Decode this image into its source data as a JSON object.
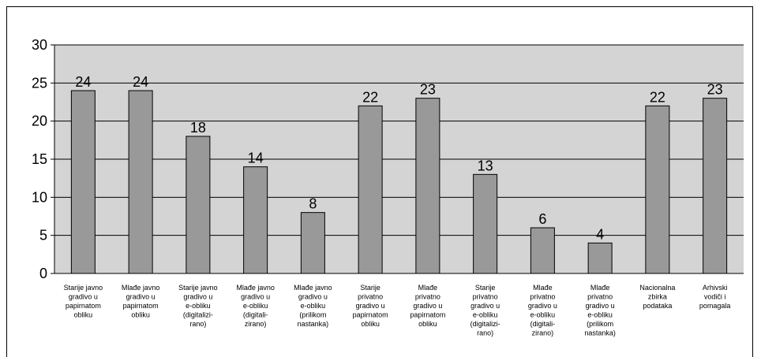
{
  "chart_data": {
    "type": "bar",
    "categories": [
      "Starije javno gradivo u papirnatom obliku",
      "Mlađe javno gradivo u papirnatom obliku",
      "Starije javno gradivo u e-obliku (digitalizi- rano)",
      "Mlađe javno gradivo u e-obliku (digitali- zirano)",
      "Mlađe javno gradivo u e-obliku (prilikom nastanka)",
      "Starije privatno gradivo u papirnatom obliku",
      "Mlađe privatno gradivo u papirnatom obliku",
      "Starije privatno gradivo u e-obliku (digitalizi- rano)",
      "Mlađe privatno gradivo u e-obliku (digitali- zirano)",
      "Mlađe privatno gradivo u e-obliku (prilikom nastanka)",
      "Nacionalna zbirka podataka",
      "Arhivski vodiči i pomagala"
    ],
    "category_lines": [
      [
        "Starije javno",
        "gradivo u",
        "papirnatom",
        "obliku"
      ],
      [
        "Mlađe javno",
        "gradivo u",
        "papirnatom",
        "obliku"
      ],
      [
        "Starije javno",
        "gradivo u",
        "e-obliku",
        "(digitalizi-",
        "rano)"
      ],
      [
        "Mlađe javno",
        "gradivo u",
        "e-obliku",
        "(digitali-",
        "zirano)"
      ],
      [
        "Mlađe javno",
        "gradivo u",
        "e-obliku",
        "(prilikom",
        "nastanka)"
      ],
      [
        "Starije",
        "privatno",
        "gradivo u",
        "papirnatom",
        "obliku"
      ],
      [
        "Mlađe",
        "privatno",
        "gradivo u",
        "papirnatom",
        "obliku"
      ],
      [
        "Starije",
        "privatno",
        "gradivo u",
        "e-obliku",
        "(digitalizi-",
        "rano)"
      ],
      [
        "Mlađe",
        "privatno",
        "gradivo u",
        "e-obliku",
        "(digitali-",
        "zirano)"
      ],
      [
        "Mlađe",
        "privatno",
        "gradivo u",
        "e-obliku",
        "(prilikom",
        "nastanka)"
      ],
      [
        "Nacionalna",
        "zbirka",
        "podataka"
      ],
      [
        "Arhivski",
        "vodiči i",
        "pomagala"
      ]
    ],
    "values": [
      24,
      24,
      18,
      14,
      8,
      22,
      23,
      13,
      6,
      4,
      22,
      23
    ],
    "data_labels": [
      "24",
      "24",
      "18",
      "14",
      "8",
      "22",
      "23",
      "13",
      "6",
      "4",
      "22",
      "23"
    ],
    "ylim": [
      0,
      30
    ],
    "yticks": [
      0,
      5,
      10,
      15,
      20,
      25,
      30
    ],
    "ytick_labels": [
      "0",
      "5",
      "10",
      "15",
      "20",
      "25",
      "30"
    ],
    "grid": true,
    "legend": "none",
    "colors": {
      "bar_fill": "#999999",
      "bar_stroke": "#000000",
      "plot_bg": "#d4d4d4",
      "gridline": "#000000"
    }
  }
}
